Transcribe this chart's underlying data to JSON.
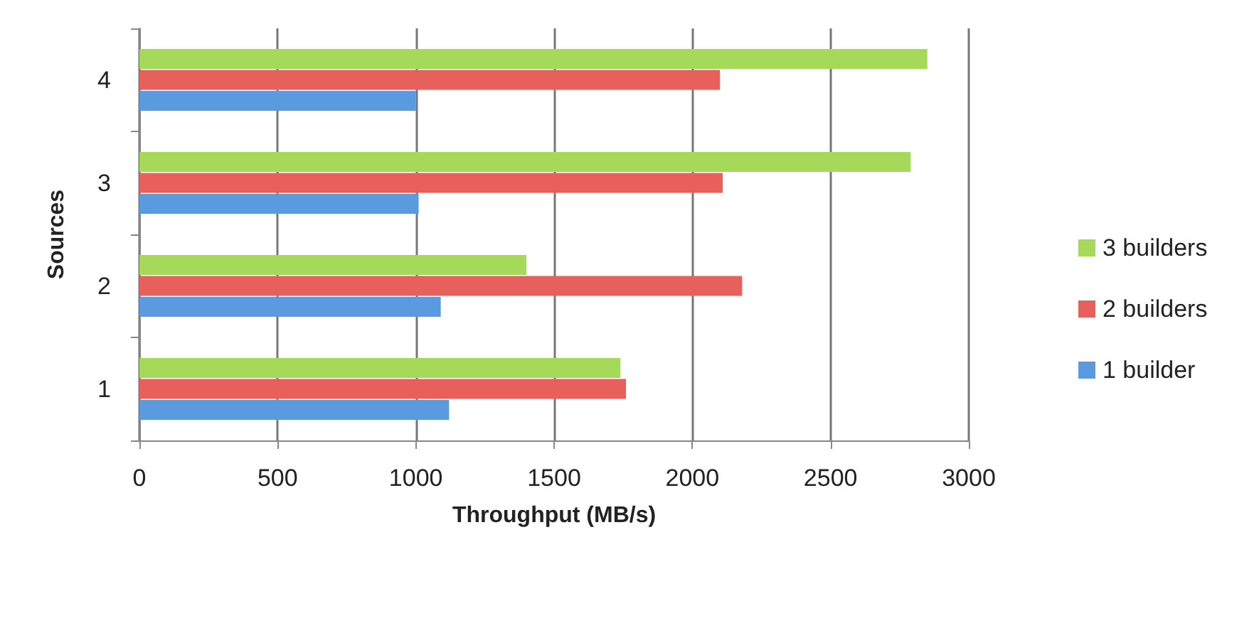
{
  "chart_data": {
    "type": "bar",
    "orientation": "horizontal",
    "xlabel": "Throughput (MB/s)",
    "ylabel": "Sources",
    "categories": [
      "4",
      "3",
      "2",
      "1"
    ],
    "series": [
      {
        "name": "3 builders",
        "color": "#a6d85a",
        "values": [
          2850,
          2790,
          1400,
          1740
        ]
      },
      {
        "name": "2 builders",
        "color": "#e8605c",
        "values": [
          2100,
          2110,
          2180,
          1760
        ]
      },
      {
        "name": "1 builder",
        "color": "#5a9be0",
        "values": [
          1000,
          1010,
          1090,
          1120
        ]
      }
    ],
    "xlim": [
      0,
      3000
    ],
    "xticks": [
      0,
      500,
      1000,
      1500,
      2000,
      2500,
      3000
    ],
    "grid": "x",
    "legend": "right"
  }
}
